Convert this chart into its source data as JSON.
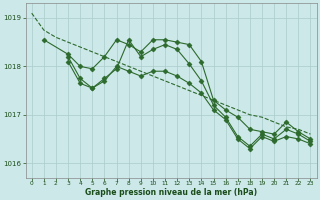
{
  "bg_color": "#cce8e8",
  "grid_color": "#aacccc",
  "line_color": "#2d6a2d",
  "marker_color": "#2d6a2d",
  "xlabel": "Graphe pression niveau de la mer (hPa)",
  "xlabel_color": "#1a4d1a",
  "ylabel_color": "#1a4d1a",
  "xlim": [
    -0.5,
    23.5
  ],
  "ylim": [
    1015.7,
    1019.3
  ],
  "yticks": [
    1016,
    1017,
    1018,
    1019
  ],
  "xticks": [
    0,
    1,
    2,
    3,
    4,
    5,
    6,
    7,
    8,
    9,
    10,
    11,
    12,
    13,
    14,
    15,
    16,
    17,
    18,
    19,
    20,
    21,
    22,
    23
  ],
  "series": [
    {
      "x": [
        0,
        1,
        2,
        3,
        4,
        5,
        6,
        7,
        8,
        9,
        10,
        11,
        12,
        13,
        14,
        15,
        16,
        17,
        18,
        19,
        20,
        21,
        22,
        23
      ],
      "y": [
        1019.1,
        1018.75,
        1018.6,
        1018.5,
        1018.4,
        1018.3,
        1018.2,
        1018.1,
        1018.0,
        1017.9,
        1017.8,
        1017.7,
        1017.6,
        1017.5,
        1017.4,
        1017.3,
        1017.2,
        1017.1,
        1017.0,
        1016.95,
        1016.85,
        1016.75,
        1016.7,
        1016.6
      ],
      "marker": null,
      "linestyle": "--",
      "linewidth": 0.8
    },
    {
      "x": [
        1,
        3,
        4,
        5,
        6,
        7,
        8,
        9,
        10,
        11,
        12,
        13,
        14,
        15,
        16,
        17,
        18,
        19,
        20,
        21,
        22,
        23
      ],
      "y": [
        1018.55,
        1018.25,
        1018.0,
        1017.95,
        1018.2,
        1018.55,
        1018.45,
        1018.3,
        1018.55,
        1018.55,
        1018.5,
        1018.45,
        1018.1,
        1017.3,
        1017.1,
        1016.95,
        1016.7,
        1016.65,
        1016.6,
        1016.85,
        1016.65,
        1016.5
      ],
      "marker": "D",
      "linestyle": "-",
      "linewidth": 0.8
    },
    {
      "x": [
        3,
        4,
        5,
        6,
        7,
        8,
        9,
        10,
        11,
        12,
        13,
        14,
        15,
        16,
        17,
        18,
        19,
        20,
        21,
        22,
        23
      ],
      "y": [
        1018.2,
        1017.75,
        1017.55,
        1017.75,
        1017.95,
        1018.55,
        1018.2,
        1018.35,
        1018.45,
        1018.35,
        1018.05,
        1017.7,
        1017.2,
        1016.95,
        1016.55,
        1016.35,
        1016.6,
        1016.5,
        1016.7,
        1016.6,
        1016.45
      ],
      "marker": "D",
      "linestyle": "-",
      "linewidth": 0.8
    },
    {
      "x": [
        3,
        4,
        5,
        6,
        7,
        8,
        9,
        10,
        11,
        12,
        13,
        14,
        15,
        16,
        17,
        18,
        19,
        20,
        21,
        22,
        23
      ],
      "y": [
        1018.1,
        1017.65,
        1017.55,
        1017.7,
        1018.0,
        1017.9,
        1017.8,
        1017.9,
        1017.9,
        1017.8,
        1017.65,
        1017.45,
        1017.1,
        1016.9,
        1016.5,
        1016.3,
        1016.55,
        1016.45,
        1016.55,
        1016.5,
        1016.4
      ],
      "marker": "D",
      "linestyle": "-",
      "linewidth": 0.8
    }
  ]
}
